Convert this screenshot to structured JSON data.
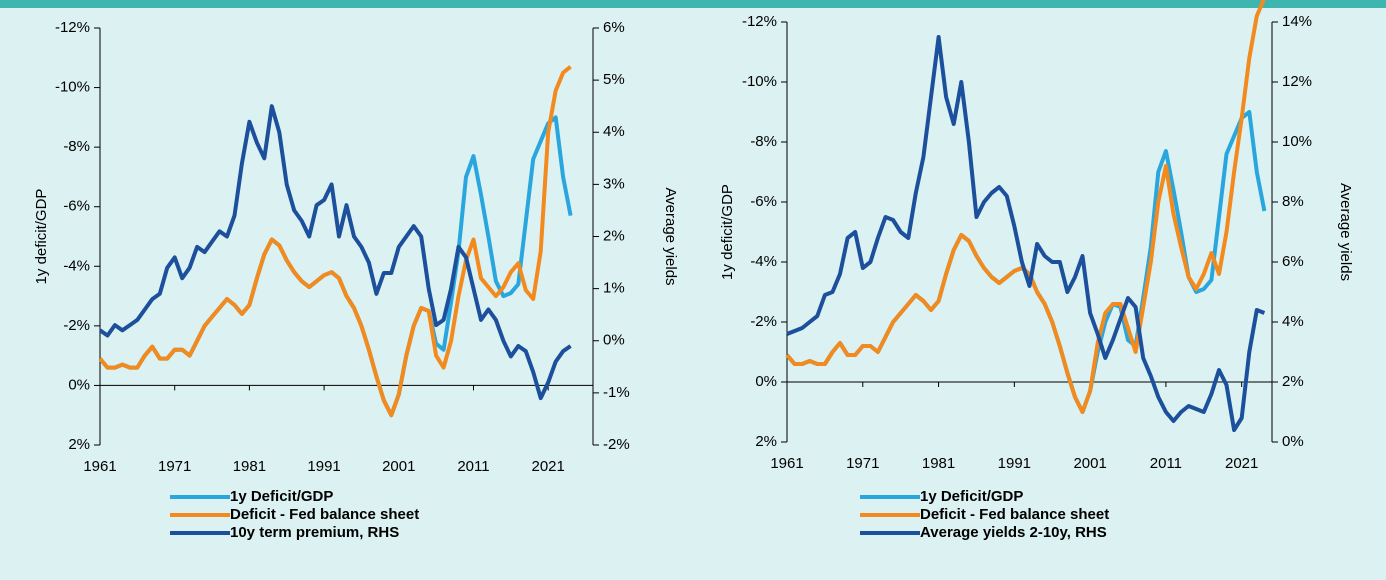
{
  "chart_data": [
    {
      "type": "line",
      "x": [
        1961,
        1962,
        1963,
        1964,
        1965,
        1966,
        1967,
        1968,
        1969,
        1970,
        1971,
        1972,
        1973,
        1974,
        1975,
        1976,
        1977,
        1978,
        1979,
        1980,
        1981,
        1982,
        1983,
        1984,
        1985,
        1986,
        1987,
        1988,
        1989,
        1990,
        1991,
        1992,
        1993,
        1994,
        1995,
        1996,
        1997,
        1998,
        1999,
        2000,
        2001,
        2002,
        2003,
        2004,
        2005,
        2006,
        2007,
        2008,
        2009,
        2010,
        2011,
        2012,
        2013,
        2014,
        2015,
        2016,
        2017,
        2018,
        2019,
        2020,
        2021,
        2022,
        2023,
        2024
      ],
      "xlim": [
        1961,
        2027
      ],
      "xticks": [
        1961,
        1971,
        1981,
        1991,
        2001,
        2011,
        2021
      ],
      "ylim": [
        2,
        -12
      ],
      "yticks": [
        {
          "value": -12,
          "label": "-12%"
        },
        {
          "value": -10,
          "label": "-10%"
        },
        {
          "value": -8,
          "label": "-8%"
        },
        {
          "value": -6,
          "label": "-6%"
        },
        {
          "value": -4,
          "label": "-4%"
        },
        {
          "value": -2,
          "label": "-2%"
        },
        {
          "value": 0,
          "label": "0%"
        },
        {
          "value": 2,
          "label": "2%"
        }
      ],
      "y2lim": [
        -2,
        6
      ],
      "y2ticks": [
        {
          "value": -2,
          "label": "-2%"
        },
        {
          "value": -1,
          "label": "-1%"
        },
        {
          "value": 0,
          "label": "0%"
        },
        {
          "value": 1,
          "label": "1%"
        },
        {
          "value": 2,
          "label": "2%"
        },
        {
          "value": 3,
          "label": "3%"
        },
        {
          "value": 4,
          "label": "4%"
        },
        {
          "value": 5,
          "label": "5%"
        },
        {
          "value": 6,
          "label": "6%"
        }
      ],
      "ylabel": "1y deficit/GDP",
      "y2label": "Average yields",
      "series": [
        {
          "name": "1y Deficit/GDP",
          "color": "#2aa6de",
          "values": [
            -0.9,
            -0.6,
            -0.6,
            -0.7,
            -0.6,
            -0.6,
            -1.0,
            -1.3,
            -0.9,
            -0.9,
            -1.2,
            -1.2,
            -1.0,
            -1.5,
            -2.0,
            -2.3,
            -2.6,
            -2.9,
            -2.7,
            -2.4,
            -2.7,
            -3.6,
            -4.4,
            -4.9,
            -4.7,
            -4.2,
            -3.8,
            -3.5,
            -3.3,
            -3.5,
            -3.7,
            -3.8,
            -3.6,
            -3.0,
            -2.6,
            -2.0,
            -1.2,
            -0.3,
            0.5,
            1.0,
            0.3,
            -1.0,
            -2.0,
            -2.6,
            -2.5,
            -1.4,
            -1.2,
            -2.8,
            -4.5,
            -7.0,
            -7.7,
            -6.4,
            -5.0,
            -3.5,
            -3.0,
            -3.1,
            -3.4,
            -5.5,
            -7.6,
            -8.2,
            -8.8,
            -9.0,
            -7.0,
            -5.7
          ]
        },
        {
          "name": "Deficit - Fed balance sheet",
          "color": "#f28a1e",
          "values": [
            -0.9,
            -0.6,
            -0.6,
            -0.7,
            -0.6,
            -0.6,
            -1.0,
            -1.3,
            -0.9,
            -0.9,
            -1.2,
            -1.2,
            -1.0,
            -1.5,
            -2.0,
            -2.3,
            -2.6,
            -2.9,
            -2.7,
            -2.4,
            -2.7,
            -3.6,
            -4.4,
            -4.9,
            -4.7,
            -4.2,
            -3.8,
            -3.5,
            -3.3,
            -3.5,
            -3.7,
            -3.8,
            -3.6,
            -3.0,
            -2.6,
            -2.0,
            -1.2,
            -0.3,
            0.5,
            1.0,
            0.3,
            -1.0,
            -2.0,
            -2.6,
            -2.5,
            -1.0,
            -0.6,
            -1.5,
            -3.0,
            -4.2,
            -4.9,
            -3.6,
            -3.3,
            -3.0,
            -3.3,
            -3.8,
            -4.1,
            -3.2,
            -2.9,
            -4.5,
            -8.5,
            -9.9,
            -10.5,
            -10.7
          ]
        },
        {
          "name": "10y term premium, RHS",
          "color": "#1c4f9c",
          "axis": "y2",
          "values": [
            0.2,
            0.1,
            0.3,
            0.2,
            0.3,
            0.4,
            0.6,
            0.8,
            0.9,
            1.4,
            1.6,
            1.2,
            1.4,
            1.8,
            1.7,
            1.9,
            2.1,
            2.0,
            2.4,
            3.4,
            4.2,
            3.8,
            3.5,
            4.5,
            4.0,
            3.0,
            2.5,
            2.3,
            2.0,
            2.6,
            2.7,
            3.0,
            2.0,
            2.6,
            2.0,
            1.8,
            1.5,
            0.9,
            1.3,
            1.3,
            1.8,
            2.0,
            2.2,
            2.0,
            1.0,
            0.3,
            0.4,
            1.0,
            1.8,
            1.6,
            1.0,
            0.4,
            0.6,
            0.4,
            0.0,
            -0.3,
            -0.1,
            -0.2,
            -0.6,
            -1.1,
            -0.8,
            -0.4,
            -0.2,
            -0.1
          ]
        }
      ]
    },
    {
      "type": "line",
      "x": [
        1961,
        1962,
        1963,
        1964,
        1965,
        1966,
        1967,
        1968,
        1969,
        1970,
        1971,
        1972,
        1973,
        1974,
        1975,
        1976,
        1977,
        1978,
        1979,
        1980,
        1981,
        1982,
        1983,
        1984,
        1985,
        1986,
        1987,
        1988,
        1989,
        1990,
        1991,
        1992,
        1993,
        1994,
        1995,
        1996,
        1997,
        1998,
        1999,
        2000,
        2001,
        2002,
        2003,
        2004,
        2005,
        2006,
        2007,
        2008,
        2009,
        2010,
        2011,
        2012,
        2013,
        2014,
        2015,
        2016,
        2017,
        2018,
        2019,
        2020,
        2021,
        2022,
        2023,
        2024
      ],
      "xlim": [
        1961,
        2025
      ],
      "xticks": [
        1961,
        1971,
        1981,
        1991,
        2001,
        2011,
        2021
      ],
      "ylim": [
        2,
        -12
      ],
      "yticks": [
        {
          "value": -12,
          "label": "-12%"
        },
        {
          "value": -10,
          "label": "-10%"
        },
        {
          "value": -8,
          "label": "-8%"
        },
        {
          "value": -6,
          "label": "-6%"
        },
        {
          "value": -4,
          "label": "-4%"
        },
        {
          "value": -2,
          "label": "-2%"
        },
        {
          "value": 0,
          "label": "0%"
        },
        {
          "value": 2,
          "label": "2%"
        }
      ],
      "y2lim": [
        0,
        14
      ],
      "y2ticks": [
        {
          "value": 0,
          "label": "0%"
        },
        {
          "value": 2,
          "label": "2%"
        },
        {
          "value": 4,
          "label": "4%"
        },
        {
          "value": 6,
          "label": "6%"
        },
        {
          "value": 8,
          "label": "8%"
        },
        {
          "value": 10,
          "label": "10%"
        },
        {
          "value": 12,
          "label": "12%"
        },
        {
          "value": 14,
          "label": "14%"
        }
      ],
      "ylabel": "1y deficit/GDP",
      "y2label": "Average yields",
      "series": [
        {
          "name": "1y Deficit/GDP",
          "color": "#2aa6de",
          "values": [
            -0.9,
            -0.6,
            -0.6,
            -0.7,
            -0.6,
            -0.6,
            -1.0,
            -1.3,
            -0.9,
            -0.9,
            -1.2,
            -1.2,
            -1.0,
            -1.5,
            -2.0,
            -2.3,
            -2.6,
            -2.9,
            -2.7,
            -2.4,
            -2.7,
            -3.6,
            -4.4,
            -4.9,
            -4.7,
            -4.2,
            -3.8,
            -3.5,
            -3.3,
            -3.5,
            -3.7,
            -3.8,
            -3.6,
            -3.0,
            -2.6,
            -2.0,
            -1.2,
            -0.3,
            0.5,
            1.0,
            0.3,
            -1.0,
            -2.0,
            -2.6,
            -2.5,
            -1.4,
            -1.2,
            -2.8,
            -4.5,
            -7.0,
            -7.7,
            -6.4,
            -5.0,
            -3.5,
            -3.0,
            -3.1,
            -3.4,
            -5.5,
            -7.6,
            -8.2,
            -8.8,
            -9.0,
            -7.0,
            -5.7
          ]
        },
        {
          "name": "Deficit - Fed balance sheet",
          "color": "#f28a1e",
          "values": [
            -0.9,
            -0.6,
            -0.6,
            -0.7,
            -0.6,
            -0.6,
            -1.0,
            -1.3,
            -0.9,
            -0.9,
            -1.2,
            -1.2,
            -1.0,
            -1.5,
            -2.0,
            -2.3,
            -2.6,
            -2.9,
            -2.7,
            -2.4,
            -2.7,
            -3.6,
            -4.4,
            -4.9,
            -4.7,
            -4.2,
            -3.8,
            -3.5,
            -3.3,
            -3.5,
            -3.7,
            -3.8,
            -3.6,
            -3.0,
            -2.6,
            -2.0,
            -1.2,
            -0.3,
            0.5,
            1.0,
            0.3,
            -1.3,
            -2.3,
            -2.6,
            -2.6,
            -1.8,
            -1.0,
            -2.5,
            -4.0,
            -6.0,
            -7.2,
            -5.6,
            -4.5,
            -3.5,
            -3.1,
            -3.6,
            -4.3,
            -3.6,
            -5.0,
            -7.0,
            -8.8,
            -10.8,
            -12.2,
            -12.8
          ]
        },
        {
          "name": "Average yields 2-10y, RHS",
          "color": "#1c4f9c",
          "axis": "y2",
          "values": [
            3.6,
            3.7,
            3.8,
            4.0,
            4.2,
            4.9,
            5.0,
            5.6,
            6.8,
            7.0,
            5.8,
            6.0,
            6.8,
            7.5,
            7.4,
            7.0,
            6.8,
            8.3,
            9.5,
            11.5,
            13.5,
            11.5,
            10.6,
            12.0,
            10.0,
            7.5,
            8.0,
            8.3,
            8.5,
            8.2,
            7.2,
            6.0,
            5.2,
            6.6,
            6.2,
            6.0,
            6.0,
            5.0,
            5.5,
            6.2,
            4.3,
            3.6,
            2.8,
            3.4,
            4.1,
            4.8,
            4.5,
            2.8,
            2.2,
            1.5,
            1.0,
            0.7,
            1.0,
            1.2,
            1.1,
            1.0,
            1.6,
            2.4,
            1.9,
            0.4,
            0.8,
            3.0,
            4.4,
            4.3
          ]
        }
      ]
    }
  ]
}
